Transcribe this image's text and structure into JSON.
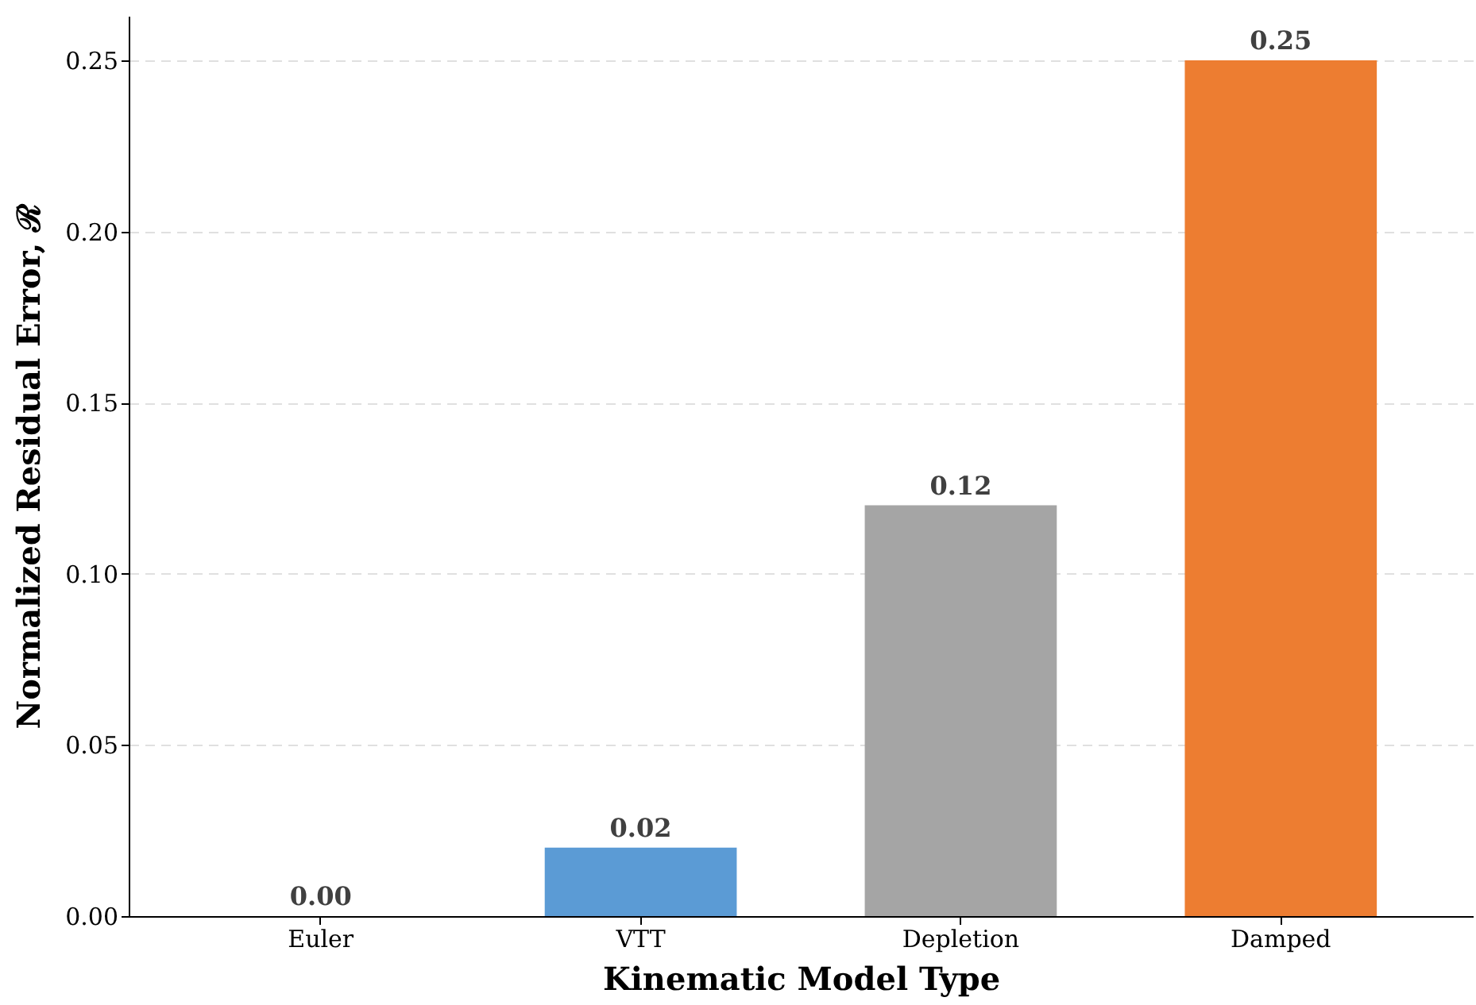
{
  "chart_data": {
    "type": "bar",
    "xlabel": "Kinematic Model Type",
    "ylabel": "Normalized Residual Error, ℛ",
    "categories": [
      "Euler",
      "VTT",
      "Depletion",
      "Damped"
    ],
    "values": [
      0.0,
      0.02,
      0.12,
      0.25
    ],
    "value_labels": [
      "0.00",
      "0.02",
      "0.12",
      "0.25"
    ],
    "colors": [
      "#5b9bd5",
      "#5b9bd5",
      "#a5a5a5",
      "#ed7d31"
    ],
    "ylim": [
      0,
      0.263
    ],
    "yticks": [
      {
        "value": 0,
        "label": "0.00"
      },
      0.05,
      {
        "value": 0.1,
        "label": "0.10"
      },
      0.15,
      {
        "value": 0.2,
        "label": "0.20"
      },
      0.25
    ],
    "grid": "y"
  }
}
